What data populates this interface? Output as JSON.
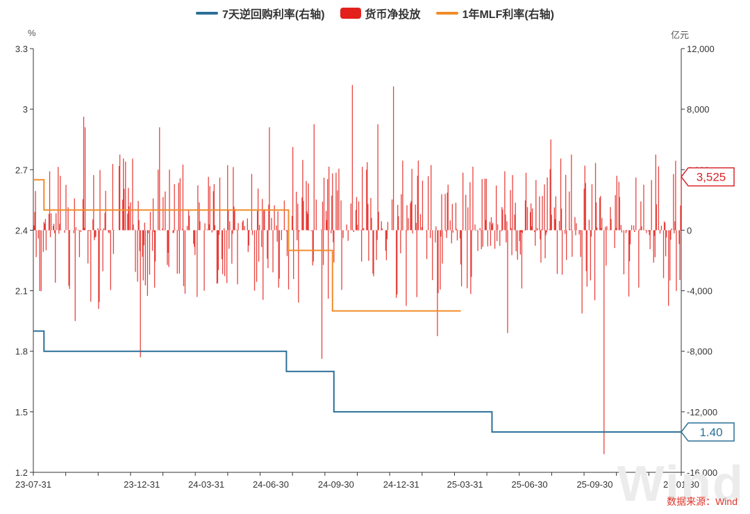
{
  "legend": {
    "repo_label": "7天逆回购利率(右轴)",
    "net_label": "货币净投放",
    "mlf_label": "1年MLF利率(右轴)"
  },
  "units": {
    "left": "%",
    "right": "亿元"
  },
  "source": "数据来源：Wind",
  "watermark": "Wind",
  "colors": {
    "repo": "#2a6f97",
    "net": "#e3211c",
    "mlf": "#f28c28",
    "repo_callout": "#2a6f97",
    "net_callout": "#d9252a"
  },
  "chart_data": {
    "type": "line+bar",
    "x_ticks": [
      "23-07-31",
      "23-12-31",
      "24-03-31",
      "24-06-30",
      "24-09-30",
      "24-12-31",
      "25-03-31",
      "25-06-30",
      "25-09-30",
      "26-01-30"
    ],
    "x_range": [
      "2023-07-31",
      "2026-01-30"
    ],
    "left_axis": {
      "unit": "%",
      "ylim": [
        1.2,
        3.3
      ],
      "ticks": [
        "1.2",
        "1.5",
        "1.8",
        "2.1",
        "2.4",
        "2.7",
        "3",
        "3.3"
      ]
    },
    "right_axis": {
      "unit": "亿元",
      "ylim": [
        -16000,
        12000
      ],
      "ticks": [
        "-16,000",
        "-12,000",
        "-8,000",
        "-4,000",
        "0",
        "4,000",
        "8,000",
        "12,000"
      ]
    },
    "series": [
      {
        "name": "7天逆回购利率(右轴)",
        "type": "step-line",
        "axis": "left",
        "points": [
          [
            "2023-07-31",
            1.9
          ],
          [
            "2023-08-15",
            1.8
          ],
          [
            "2024-07-22",
            1.7
          ],
          [
            "2024-09-27",
            1.5
          ],
          [
            "2025-05-08",
            1.4
          ],
          [
            "2026-01-30",
            1.4
          ]
        ],
        "last_value_label": "1.40"
      },
      {
        "name": "1年MLF利率(右轴)",
        "type": "step-line",
        "axis": "left",
        "points": [
          [
            "2023-07-31",
            2.65
          ],
          [
            "2023-08-15",
            2.5
          ],
          [
            "2024-07-25",
            2.3
          ],
          [
            "2024-09-25",
            2.0
          ],
          [
            "2025-03-25",
            2.0
          ]
        ]
      },
      {
        "name": "货币净投放",
        "type": "bar",
        "axis": "right",
        "events": [
          [
            "2023-09-15",
            3000
          ],
          [
            "2023-09-28",
            -6000
          ],
          [
            "2023-10-10",
            7500
          ],
          [
            "2023-10-12",
            6800
          ],
          [
            "2023-10-31",
            -5200
          ],
          [
            "2023-11-30",
            5000
          ],
          [
            "2023-12-29",
            -8400
          ],
          [
            "2023-12-12",
            2800
          ],
          [
            "2024-01-25",
            6800
          ],
          [
            "2024-02-08",
            4000
          ],
          [
            "2024-02-28",
            -3700
          ],
          [
            "2024-03-28",
            -4000
          ],
          [
            "2024-04-30",
            4300
          ],
          [
            "2024-06-07",
            -4000
          ],
          [
            "2024-06-28",
            6800
          ],
          [
            "2024-07-31",
            5500
          ],
          [
            "2024-08-30",
            7000
          ],
          [
            "2024-09-10",
            -8500
          ],
          [
            "2024-09-20",
            4200
          ],
          [
            "2024-09-30",
            3800
          ],
          [
            "2024-10-23",
            9600
          ],
          [
            "2024-11-12",
            4000
          ],
          [
            "2024-11-28",
            7000
          ],
          [
            "2024-12-20",
            9500
          ],
          [
            "2025-01-07",
            -5000
          ],
          [
            "2025-01-24",
            4600
          ],
          [
            "2025-02-20",
            -7000
          ],
          [
            "2025-03-28",
            3800
          ],
          [
            "2025-04-30",
            3400
          ],
          [
            "2025-05-30",
            -6800
          ],
          [
            "2025-06-25",
            3800
          ],
          [
            "2025-07-30",
            6000
          ],
          [
            "2025-08-28",
            5000
          ],
          [
            "2025-09-12",
            -5500
          ],
          [
            "2025-10-13",
            -14800
          ],
          [
            "2025-10-31",
            3600
          ],
          [
            "2025-12-25",
            5000
          ],
          [
            "2026-01-12",
            -5000
          ],
          [
            "2026-01-30",
            3525
          ]
        ],
        "last_value_label": "3,525"
      }
    ]
  }
}
